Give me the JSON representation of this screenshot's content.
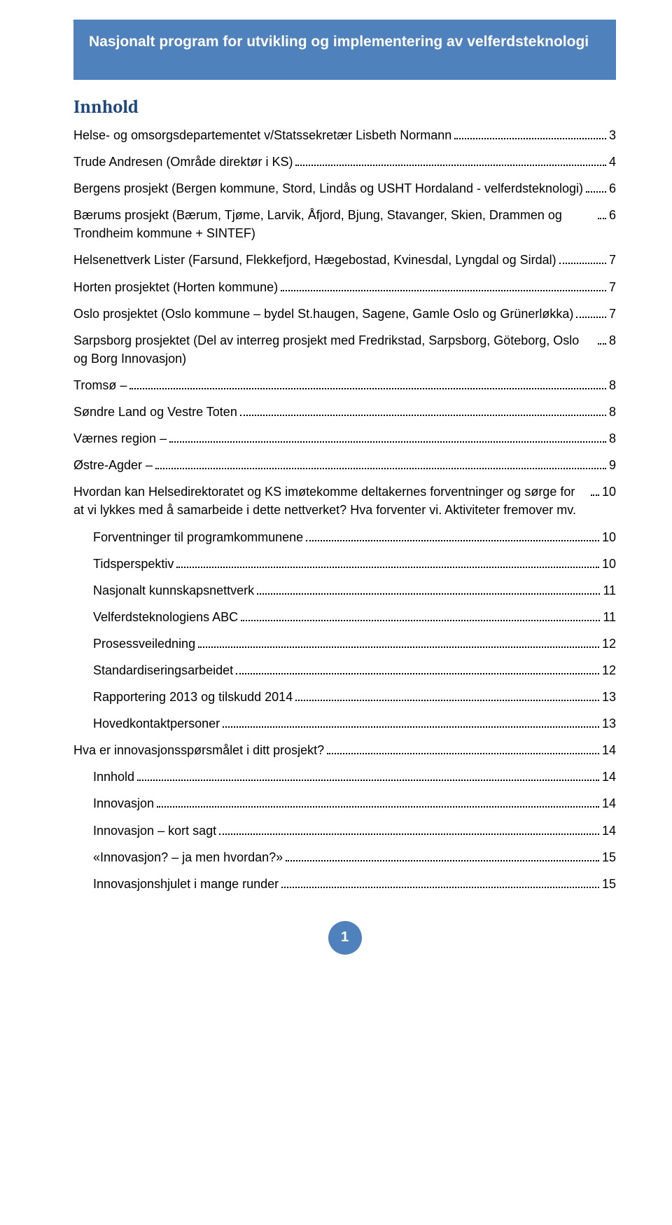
{
  "banner": {
    "title": "Nasjonalt program for utvikling og implementering av velferdsteknologi",
    "bg_color": "#4f81bd",
    "text_color": "#ffffff"
  },
  "toc": {
    "heading": "Innhold",
    "heading_color": "#1f497d",
    "entries": [
      {
        "text": "Helse- og omsorgsdepartementet v/Statssekretær Lisbeth Normann",
        "page": "3",
        "indent": 0
      },
      {
        "text": "Trude Andresen (Område direktør i KS)",
        "page": "4",
        "indent": 0
      },
      {
        "text": "Bergens prosjekt (Bergen kommune, Stord, Lindås og USHT Hordaland - velferdsteknologi)",
        "page": "6",
        "indent": 0
      },
      {
        "text": "Bærums prosjekt (Bærum, Tjøme, Larvik, Åfjord, Bjung, Stavanger, Skien, Drammen og Trondheim kommune + SINTEF)",
        "page": "6",
        "indent": 0
      },
      {
        "text": "Helsenettverk Lister (Farsund, Flekkefjord, Hægebostad, Kvinesdal, Lyngdal og Sirdal)",
        "page": "7",
        "indent": 0
      },
      {
        "text": "Horten prosjektet (Horten kommune)",
        "page": "7",
        "indent": 0
      },
      {
        "text": "Oslo prosjektet (Oslo kommune – bydel St.haugen, Sagene, Gamle Oslo og Grünerløkka)",
        "page": "7",
        "indent": 0
      },
      {
        "text": "Sarpsborg prosjektet (Del av interreg prosjekt med Fredrikstad, Sarpsborg, Göteborg, Oslo og Borg Innovasjon)",
        "page": "8",
        "indent": 0
      },
      {
        "text": "Tromsø –",
        "page": "8",
        "indent": 0
      },
      {
        "text": "Søndre Land og Vestre Toten",
        "page": "8",
        "indent": 0
      },
      {
        "text": "Værnes region –",
        "page": "8",
        "indent": 0
      },
      {
        "text": "Østre-Agder –",
        "page": "9",
        "indent": 0
      },
      {
        "text": "Hvordan kan Helsedirektoratet og KS imøtekomme deltakernes forventninger og sørge for at vi lykkes med å samarbeide i dette nettverket? Hva forventer vi. Aktiviteter fremover mv.",
        "page": "10",
        "indent": 0
      },
      {
        "text": "Forventninger til programkommunene",
        "page": "10",
        "indent": 1
      },
      {
        "text": "Tidsperspektiv",
        "page": "10",
        "indent": 1
      },
      {
        "text": "Nasjonalt kunnskapsnettverk",
        "page": "11",
        "indent": 1
      },
      {
        "text": "Velferdsteknologiens ABC",
        "page": "11",
        "indent": 1
      },
      {
        "text": "Prosessveiledning",
        "page": "12",
        "indent": 1
      },
      {
        "text": "Standardiseringsarbeidet",
        "page": "12",
        "indent": 1
      },
      {
        "text": "Rapportering 2013 og tilskudd 2014",
        "page": "13",
        "indent": 1
      },
      {
        "text": "Hovedkontaktpersoner",
        "page": "13",
        "indent": 1
      },
      {
        "text": "Hva er innovasjonsspørsmålet i ditt prosjekt?",
        "page": "14",
        "indent": 0
      },
      {
        "text": "Innhold",
        "page": "14",
        "indent": 1
      },
      {
        "text": "Innovasjon",
        "page": "14",
        "indent": 1
      },
      {
        "text": "Innovasjon – kort sagt",
        "page": "14",
        "indent": 1
      },
      {
        "text": "«Innovasjon? – ja men hvordan?»",
        "page": "15",
        "indent": 1
      },
      {
        "text": "Innovasjonshjulet  i mange runder",
        "page": "15",
        "indent": 1
      }
    ]
  },
  "pageNumber": "1",
  "palette": {
    "accent": "#4f81bd",
    "heading": "#1f497d",
    "text": "#000000",
    "background": "#ffffff"
  }
}
